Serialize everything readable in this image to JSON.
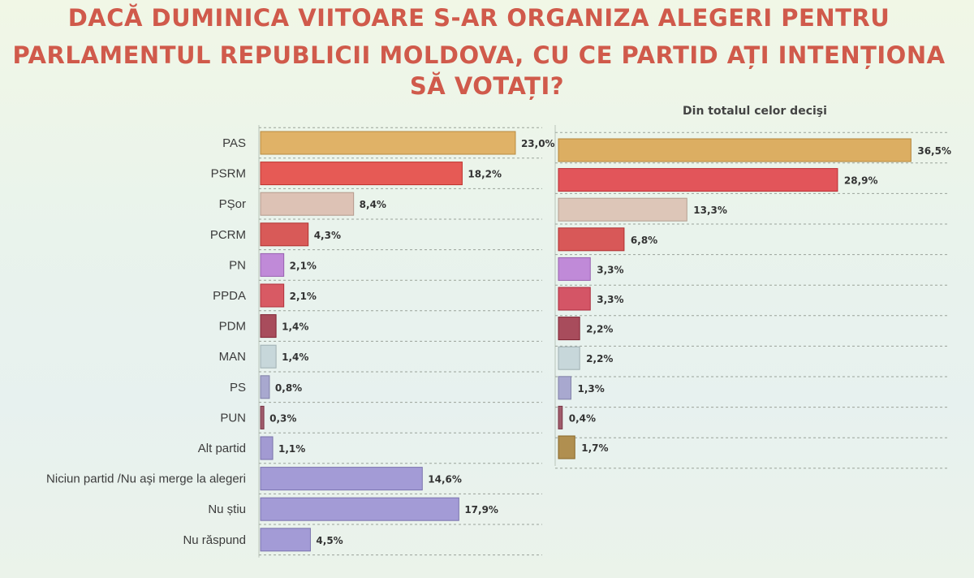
{
  "title_lines": [
    "DACĂ DUMINICA VIITOARE S-AR ORGANIZA ALEGERI PENTRU",
    "PARLAMENTUL REPUBLICII MOLDOVA, CU CE PARTID AȚI INTENȚIONA",
    "SĂ VOTAȚI?"
  ],
  "chart_data": [
    {
      "type": "bar",
      "orientation": "horizontal",
      "title": "",
      "categories": [
        "PAS",
        "PSRM",
        "PȘor",
        "PCRM",
        "PN",
        "PPDA",
        "PDM",
        "MAN",
        "PS",
        "PUN",
        "Alt partid",
        "Niciun partid /Nu aşi merge la alegeri",
        "Nu știu",
        "Nu răspund"
      ],
      "values": [
        23.0,
        18.2,
        8.4,
        4.3,
        2.1,
        2.1,
        1.4,
        1.4,
        0.8,
        0.3,
        1.1,
        14.6,
        17.9,
        4.5
      ],
      "value_labels": [
        "23,0%",
        "18,2%",
        "8,4%",
        "4,3%",
        "2,1%",
        "2,1%",
        "1,4%",
        "1,4%",
        "0,8%",
        "0,3%",
        "1,1%",
        "14,6%",
        "17,9%",
        "4,5%"
      ],
      "colors": [
        "#e0b267",
        "#e65a55",
        "#ddc2b5",
        "#d85a58",
        "#c08ad8",
        "#d85a64",
        "#a84c5c",
        "#c7d7da",
        "#a8a8cf",
        "#a05c6c",
        "#a29ad2",
        "#a39bd6",
        "#a39bd6",
        "#a39bd6"
      ],
      "grid": true,
      "legend": "none"
    },
    {
      "type": "bar",
      "orientation": "horizontal",
      "title": "Din totalul celor decişi",
      "categories": [
        "PAS",
        "PSRM",
        "PȘor",
        "PCRM",
        "PN",
        "PPDA",
        "PDM",
        "MAN",
        "PS",
        "PUN",
        "Alt partid"
      ],
      "values": [
        36.5,
        28.9,
        13.3,
        6.8,
        3.3,
        3.3,
        2.2,
        2.2,
        1.3,
        0.4,
        1.7
      ],
      "value_labels": [
        "36,5%",
        "28,9%",
        "13,3%",
        "6,8%",
        "3,3%",
        "3,3%",
        "2,2%",
        "2,2%",
        "1,3%",
        "0,4%",
        "1,7%"
      ],
      "colors": [
        "#dcae62",
        "#e2555a",
        "#ddc6b8",
        "#d85858",
        "#c08ad8",
        "#d45566",
        "#a84c5c",
        "#c7d7da",
        "#a8a8cf",
        "#a05c6c",
        "#b08f50"
      ],
      "grid": true,
      "legend": "none"
    }
  ]
}
